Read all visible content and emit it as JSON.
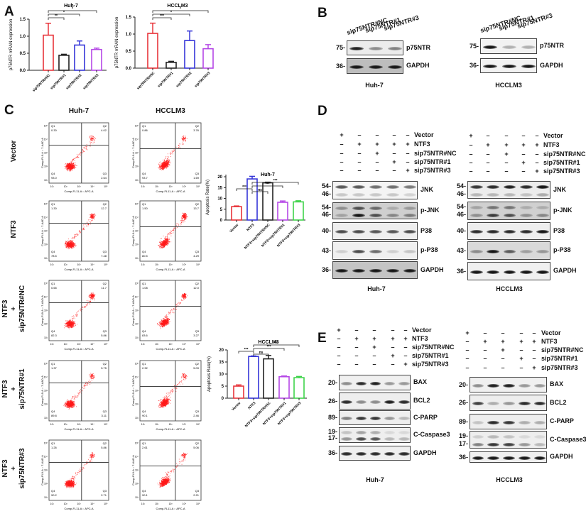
{
  "panels": {
    "A": "A",
    "B": "B",
    "C": "C",
    "D": "D",
    "E": "E"
  },
  "colors": {
    "red": "#e8343a",
    "black": "#222222",
    "blue": "#3535d8",
    "purple": "#b548e6",
    "green": "#3fd34a",
    "dots": "#ff1a1a"
  },
  "chart_data": [
    {
      "type": "bar",
      "panel": "A",
      "title": "Huh-7",
      "ylabel": "p75NTR mRAN expression",
      "categories": [
        "sip75NTR#NC",
        "sip75NTR#1",
        "sip75NTR#2",
        "sip75NTR#3"
      ],
      "values": [
        1.03,
        0.44,
        0.74,
        0.61
      ],
      "errors": [
        0.35,
        0.03,
        0.12,
        0.04
      ],
      "colors": [
        "#e8343a",
        "#222222",
        "#3535d8",
        "#b548e6"
      ],
      "ylim": [
        0,
        1.5
      ],
      "yticks": [
        "0.0",
        "0.5",
        "1.0",
        "1.5"
      ],
      "significance": [
        {
          "from": 0,
          "to": 3,
          "label": "*"
        },
        {
          "from": 0,
          "to": 2,
          "label": "*"
        },
        {
          "from": 0,
          "to": 1,
          "label": "**"
        }
      ]
    },
    {
      "type": "bar",
      "panel": "A",
      "title": "HCCLM3",
      "ylabel": "p75NTR mRAN expression",
      "categories": [
        "sip75NTR#NC",
        "sip75NTR#1",
        "sip75NTR#2",
        "sip75NTR#3"
      ],
      "values": [
        1.02,
        0.17,
        0.81,
        0.57
      ],
      "errors": [
        0.3,
        0.03,
        0.28,
        0.12
      ],
      "colors": [
        "#e8343a",
        "#222222",
        "#3535d8",
        "#b548e6"
      ],
      "ylim": [
        0,
        1.5
      ],
      "yticks": [
        "0.0",
        "0.5",
        "1.0",
        "1.5"
      ],
      "significance": [
        {
          "from": 0,
          "to": 3,
          "label": "*"
        },
        {
          "from": 0,
          "to": 2,
          "label": "*"
        },
        {
          "from": 0,
          "to": 1,
          "label": "***"
        }
      ]
    },
    {
      "type": "bar",
      "panel": "C",
      "title": "Huh-7",
      "ylabel": "Apoptosis Rate(%)",
      "categories": [
        "Vector",
        "NTF3",
        "NTF3+sip75NTR#NC",
        "NTF3+sip75NTR#1",
        "NTF3+sip75NTR#3"
      ],
      "values": [
        6.2,
        19.0,
        17.2,
        8.2,
        8.4
      ],
      "errors": [
        0.3,
        1.2,
        0.3,
        0.6,
        0.5
      ],
      "colors": [
        "#e8343a",
        "#3535d8",
        "#222222",
        "#b548e6",
        "#3fd34a"
      ],
      "ylim": [
        0,
        21
      ],
      "yticks": [
        "0",
        "5",
        "10",
        "15",
        "20"
      ],
      "significance": [
        {
          "from": 1,
          "to": 4,
          "label": "***"
        },
        {
          "from": 1,
          "to": 3,
          "label": "***"
        },
        {
          "from": 0,
          "to": 1,
          "label": "***"
        },
        {
          "from": 1,
          "to": 2,
          "label": "ns"
        }
      ]
    },
    {
      "type": "bar",
      "panel": "C",
      "title": "HCCLM3",
      "ylabel": "Apoptosis Rate(%)",
      "categories": [
        "Vector",
        "NTF3",
        "NTF3+sip75NTR#NC",
        "NTF3+sip75NTR#1",
        "NTF3+sip75NTR#3"
      ],
      "values": [
        5.0,
        17.3,
        16.3,
        8.9,
        8.5
      ],
      "errors": [
        0.5,
        0.2,
        1.4,
        0.3,
        0.5
      ],
      "colors": [
        "#e8343a",
        "#3535d8",
        "#222222",
        "#b548e6",
        "#3fd34a"
      ],
      "ylim": [
        0,
        20
      ],
      "yticks": [
        "0",
        "5",
        "10",
        "15",
        "20"
      ],
      "significance": [
        {
          "from": 1,
          "to": 4,
          "label": "***"
        },
        {
          "from": 1,
          "to": 3,
          "label": "***"
        },
        {
          "from": 0,
          "to": 1,
          "label": "***"
        },
        {
          "from": 1,
          "to": 2,
          "label": "ns"
        }
      ]
    }
  ],
  "flow": {
    "col_headers": [
      "Huh-7",
      "HCCLM3"
    ],
    "row_labels": [
      "Vector",
      "NTF3",
      "NTF3\n+\nsip75NTR#NC",
      "NTF3\n+\nsip75NTR#1",
      "NTF3\n+\nsip75NTR#3"
    ],
    "quadrant_names": [
      "Q1",
      "Q2",
      "Q3",
      "Q4"
    ],
    "xlabel": "Comp-FL11-A :: APC-A",
    "ylabel": "Comp-FL9-A :: 7-AAD-A",
    "ticks": [
      "10¹",
      "10²",
      "10³",
      "10⁴",
      "10⁵"
    ],
    "plots": [
      [
        {
          "Q1": "0.30",
          "Q2": "4.02",
          "Q3": "2.64",
          "Q4": "93.0"
        },
        {
          "Q1": "0.86",
          "Q2": "3.76",
          "Q3": "1.69",
          "Q4": "93.7"
        }
      ],
      [
        {
          "Q1": "1.30",
          "Q2": "12.7",
          "Q3": "7.48",
          "Q4": "78.5"
        },
        {
          "Q1": "1.50",
          "Q2": "13.7",
          "Q3": "4.29",
          "Q4": "80.5"
        }
      ],
      [
        {
          "Q1": "0.65",
          "Q2": "11.7",
          "Q3": "5.86",
          "Q4": "82.3"
        },
        {
          "Q1": "1.08",
          "Q2": "12.0",
          "Q3": "3.27",
          "Q4": "83.6"
        }
      ],
      [
        {
          "Q1": "1.37",
          "Q2": "5.75",
          "Q3": "3.11",
          "Q4": "89.8"
        },
        {
          "Q1": "2.32",
          "Q2": "5.09",
          "Q3": "2.46",
          "Q4": "90.1"
        }
      ],
      [
        {
          "Q1": "1.26",
          "Q2": "5.86",
          "Q3": "2.71",
          "Q4": "90.2"
        },
        {
          "Q1": "2.61",
          "Q2": "5.06",
          "Q3": "2.21",
          "Q4": "90.1"
        }
      ]
    ]
  },
  "blot_B": {
    "lanes": [
      "sip75NTR#NC",
      "sip75NTR#1",
      "sip75NTR#3"
    ],
    "cells": [
      {
        "name": "Huh-7",
        "rows": [
          {
            "label": "p75NTR",
            "markers": [
              "75-"
            ],
            "bands": [
              [
                0.95,
                0.45,
                0.5
              ]
            ]
          },
          {
            "label": "GAPDH",
            "markers": [
              "36-"
            ],
            "bands": [
              [
                1,
                1,
                1
              ]
            ]
          }
        ]
      },
      {
        "name": "HCCLM3",
        "rows": [
          {
            "label": "p75NTR",
            "markers": [
              "75-"
            ],
            "bands": [
              [
                1,
                0.3,
                0.3
              ]
            ]
          },
          {
            "label": "GAPDH",
            "markers": [
              "36-"
            ],
            "bands": [
              [
                1,
                1,
                1
              ]
            ]
          }
        ]
      }
    ]
  },
  "conditions": [
    "Vector",
    "NTF3",
    "sip75NTR#NC",
    "sip75NTR#1",
    "sip75NTR#3"
  ],
  "signs": [
    [
      "+",
      "–",
      "–",
      "–",
      "–"
    ],
    [
      "–",
      "+",
      "+",
      "+",
      "+"
    ],
    [
      "–",
      "–",
      "+",
      "–",
      "–"
    ],
    [
      "–",
      "–",
      "–",
      "+",
      "–"
    ],
    [
      "–",
      "–",
      "–",
      "–",
      "+"
    ]
  ],
  "blot_D": {
    "cells": [
      {
        "name": "Huh-7",
        "rows": [
          {
            "label": "JNK",
            "markers": [
              "54-",
              "46-"
            ],
            "bands": [
              [
                0.7,
                0.7,
                0.6,
                0.6,
                0.55
              ],
              [
                0.2,
                0.2,
                0.2,
                0.2,
                0.15
              ]
            ]
          },
          {
            "label": "p-JNK",
            "markers": [
              "54-",
              "46-"
            ],
            "bands": [
              [
                0.35,
                0.7,
                0.55,
                0.2,
                0.3
              ],
              [
                0.25,
                1,
                0.7,
                0.4,
                0.45
              ]
            ]
          },
          {
            "label": "P38",
            "markers": [
              "40-"
            ],
            "bands": [
              [
                0.75,
                0.75,
                0.7,
                0.7,
                0.75
              ]
            ]
          },
          {
            "label": "p-P38",
            "markers": [
              "43-"
            ],
            "bands": [
              [
                0.15,
                0.75,
                0.6,
                0.15,
                0.2
              ]
            ]
          },
          {
            "label": "GAPDH",
            "markers": [
              "36-"
            ],
            "bands": [
              [
                1,
                1,
                1,
                1,
                1
              ]
            ]
          }
        ]
      },
      {
        "name": "HCCLM3",
        "rows": [
          {
            "label": "JNK",
            "markers": [
              "54-",
              "46-"
            ],
            "bands": [
              [
                0.85,
                0.9,
                0.95,
                0.9,
                1
              ],
              [
                0.25,
                0.25,
                0.25,
                0.2,
                0.3
              ]
            ]
          },
          {
            "label": "p-JNK",
            "markers": [
              "54-",
              "46-"
            ],
            "bands": [
              [
                0.25,
                0.5,
                0.5,
                0.2,
                0.2
              ],
              [
                0.35,
                0.8,
                0.7,
                0.35,
                0.4
              ]
            ]
          },
          {
            "label": "P38",
            "markers": [
              "40-"
            ],
            "bands": [
              [
                0.9,
                0.9,
                0.9,
                0.9,
                1
              ]
            ]
          },
          {
            "label": "p-P38",
            "markers": [
              "43-"
            ],
            "bands": [
              [
                0.4,
                1,
                0.65,
                0.3,
                0.35
              ]
            ]
          },
          {
            "label": "GAPDH",
            "markers": [
              "36-"
            ],
            "bands": [
              [
                1,
                1,
                1,
                1,
                1
              ]
            ]
          }
        ]
      }
    ]
  },
  "blot_E": {
    "cells": [
      {
        "name": "Huh-7",
        "rows": [
          {
            "label": "BAX",
            "markers": [
              "20-"
            ],
            "bands": [
              [
                0.45,
                0.9,
                0.95,
                0.4,
                0.4
              ]
            ]
          },
          {
            "label": "BCL2",
            "markers": [
              "26-"
            ],
            "bands": [
              [
                0.9,
                0.45,
                0.45,
                0.95,
                0.9
              ]
            ]
          },
          {
            "label": "C-PARP",
            "markers": [
              "89-"
            ],
            "bands": [
              [
                0.5,
                0.85,
                0.85,
                0.4,
                0.25
              ]
            ]
          },
          {
            "label": "C-Caspase3",
            "markers": [
              "19-",
              "17-"
            ],
            "bands": [
              [
                0.2,
                0.35,
                0.3,
                0.1,
                0.1
              ],
              [
                0.4,
                0.75,
                0.7,
                0.25,
                0.25
              ]
            ]
          },
          {
            "label": "GAPDH",
            "markers": [
              "36-"
            ],
            "bands": [
              [
                0.9,
                0.9,
                0.9,
                0.9,
                0.9
              ]
            ]
          }
        ]
      },
      {
        "name": "HCCLM3",
        "rows": [
          {
            "label": "BAX",
            "markers": [
              "20-"
            ],
            "bands": [
              [
                0.45,
                0.95,
                0.95,
                0.4,
                0.4
              ]
            ]
          },
          {
            "label": "BCL2",
            "markers": [
              "26-"
            ],
            "bands": [
              [
                0.8,
                0.3,
                0.4,
                0.9,
                0.9
              ]
            ]
          },
          {
            "label": "C-PARP",
            "markers": [
              "89-"
            ],
            "bands": [
              [
                0.2,
                0.9,
                0.85,
                0.3,
                0.3
              ]
            ]
          },
          {
            "label": "C-Caspase3",
            "markers": [
              "19-",
              "17-"
            ],
            "bands": [
              [
                0.15,
                0.25,
                0.2,
                0.1,
                0.1
              ],
              [
                0.5,
                0.85,
                0.8,
                0.4,
                0.25
              ]
            ]
          },
          {
            "label": "GAPDH",
            "markers": [
              "36-"
            ],
            "bands": [
              [
                1,
                1,
                1,
                1,
                1
              ]
            ]
          }
        ]
      }
    ]
  }
}
